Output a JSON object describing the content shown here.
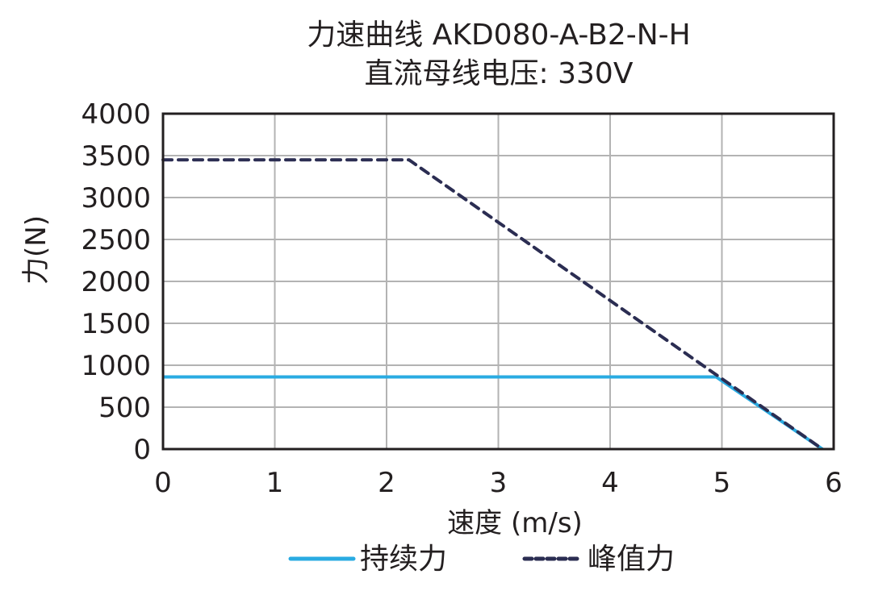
{
  "chart_data": {
    "type": "line",
    "title": "力速曲线 AKD080-A-B2-N-H",
    "subtitle": "直流母线电压: 330V",
    "xlabel": "速度 (m/s)",
    "ylabel": "力(N)",
    "xlim": [
      0,
      6
    ],
    "ylim": [
      0,
      4000
    ],
    "xticks": [
      "0",
      "1",
      "2",
      "3",
      "4",
      "5",
      "6"
    ],
    "yticks": [
      "0",
      "500",
      "1000",
      "1500",
      "2000",
      "2500",
      "3000",
      "3500",
      "4000"
    ],
    "grid": true,
    "legend_position": "bottom",
    "series": [
      {
        "name": "持续力",
        "style": "solid",
        "color": "#29abe2",
        "x": [
          0,
          4.95,
          5.9
        ],
        "y": [
          860,
          860,
          0
        ]
      },
      {
        "name": "峰值力",
        "style": "dashed",
        "color": "#2b2d52",
        "x": [
          0,
          2.2,
          5.9
        ],
        "y": [
          3450,
          3450,
          0
        ]
      }
    ]
  },
  "legend": {
    "items": [
      {
        "label": "持续力"
      },
      {
        "label": "峰值力"
      }
    ]
  }
}
